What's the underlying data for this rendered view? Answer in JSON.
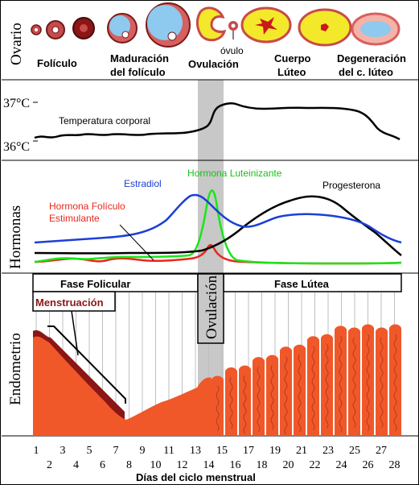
{
  "ovary": {
    "section_label": "Ovario",
    "stages": [
      {
        "label_1": "Folículo",
        "label_2": ""
      },
      {
        "label_1": "Maduración",
        "label_2": "del folículo"
      },
      {
        "label_1": "Ovulación",
        "label_2": ""
      },
      {
        "label_1": "Cuerpo",
        "label_2": "Lúteo"
      },
      {
        "label_1": "Degeneración",
        "label_2": "del c. lúteo"
      }
    ],
    "ovum_label": "óvulo"
  },
  "temperature": {
    "ticks": [
      "37°C",
      "36°C"
    ],
    "label": "Temperatura corporal"
  },
  "hormones": {
    "section_label": "Hormonas",
    "estradiol": "Estradiol",
    "lh": "Hormona Luteinizante",
    "progesterone": "Progesterona",
    "fsh_1": "Hormona Folículo",
    "fsh_2": "Estimulante"
  },
  "phases": {
    "follicular": "Fase Folicular",
    "luteal": "Fase Lútea",
    "ovulation": "Ovulación",
    "menstruation": "Menstruación"
  },
  "endometrium": {
    "section_label": "Endometrio"
  },
  "x_axis": {
    "top_row": [
      "1",
      "3",
      "5",
      "7",
      "9",
      "11",
      "13",
      "15",
      "17",
      "19",
      "21",
      "23",
      "25",
      "27"
    ],
    "bottom_row": [
      "2",
      "4",
      "6",
      "8",
      "10",
      "12",
      "14",
      "16",
      "18",
      "20",
      "22",
      "24",
      "26",
      "28"
    ],
    "title": "Días del ciclo menstrual"
  },
  "colors": {
    "estradiol": "#1c3fd6",
    "lh": "#19e619",
    "fsh": "#e8281a",
    "progesterone": "#000000",
    "endometrium": "#f0582a",
    "ovulation_band": "#c8c8c8"
  }
}
